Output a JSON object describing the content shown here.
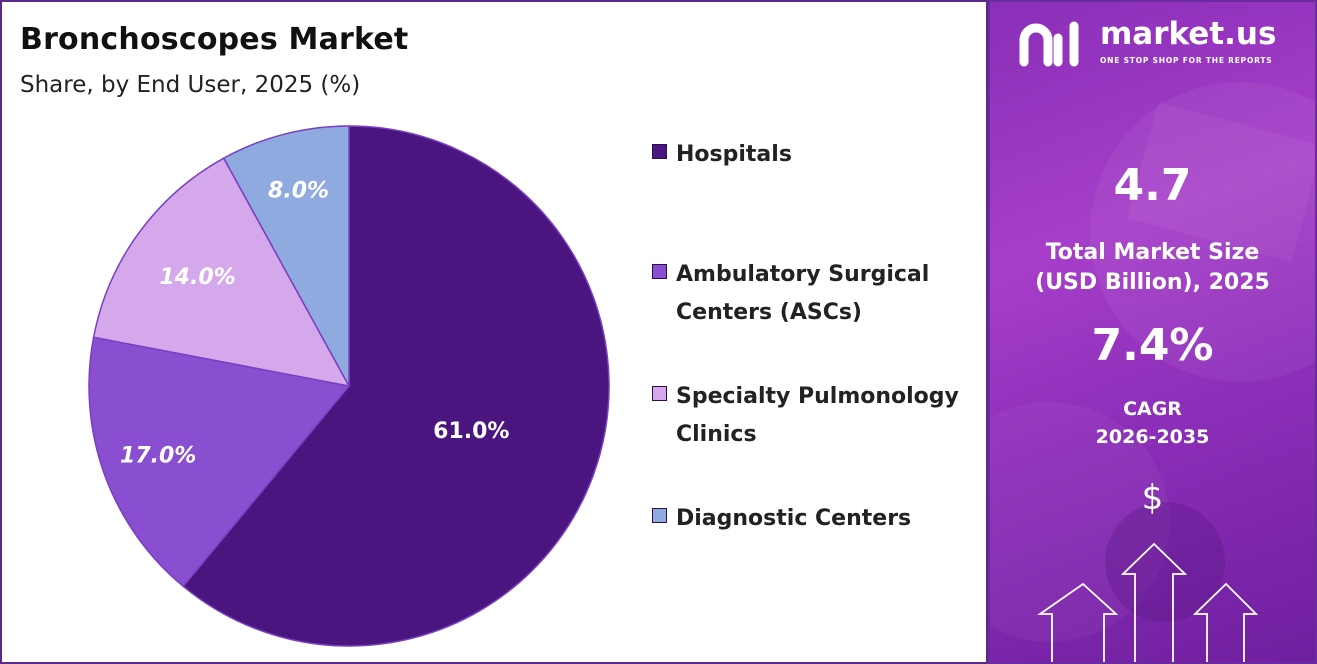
{
  "chart_data": {
    "type": "pie",
    "title": "Bronchoscopes Market",
    "subtitle": "Share, by End User, 2025 (%)",
    "categories": [
      "Hospitals",
      "Ambulatory Surgical Centers (ASCs)",
      "Specialty Pulmonology Clinics",
      "Diagnostic Centers"
    ],
    "values": [
      61.0,
      17.0,
      14.0,
      8.0
    ],
    "data_labels": [
      "61.0%",
      "17.0%",
      "14.0%",
      "8.0%"
    ],
    "colors": [
      "#4b1580",
      "#8a4fd0",
      "#d5a8ec",
      "#8faadf"
    ],
    "legend_position": "right"
  },
  "brand": {
    "name": "market.us",
    "tagline": "ONE STOP SHOP FOR THE REPORTS"
  },
  "stats": {
    "market_size_value": "4.7",
    "market_size_label_line1": "Total Market Size",
    "market_size_label_line2": "(USD Billion), 2025",
    "cagr_value": "7.4%",
    "cagr_label_line1": "CAGR",
    "cagr_label_line2": "2026-2035",
    "currency_symbol": "$"
  },
  "legend_label_lines": [
    [
      "Hospitals"
    ],
    [
      "Ambulatory Surgical",
      "Centers (ASCs)"
    ],
    [
      "Specialty Pulmonology",
      "Clinics"
    ],
    [
      "Diagnostic Centers"
    ]
  ]
}
